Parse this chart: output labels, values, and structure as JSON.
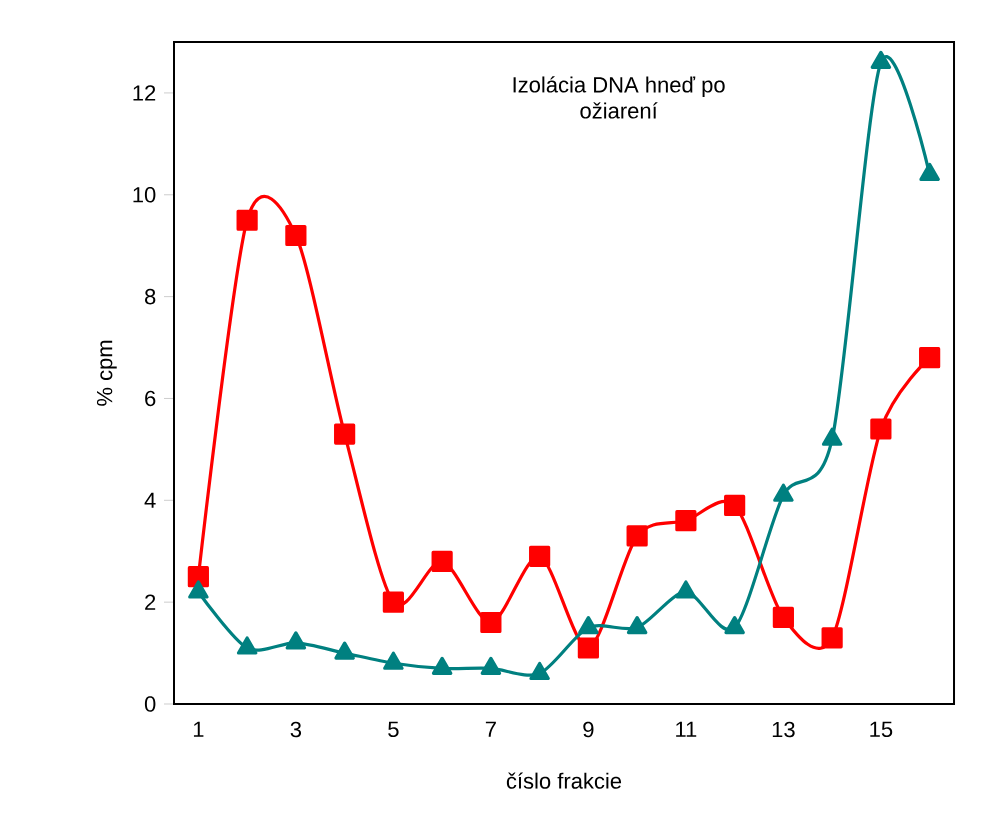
{
  "chart_data": {
    "type": "line",
    "title": "Izolácia DNA hneď po ožiarení",
    "xlabel": "číslo frakcie",
    "ylabel": "% cpm",
    "categories": [
      "1",
      null,
      "3",
      null,
      "5",
      null,
      "7",
      null,
      "9",
      null,
      "11",
      null,
      "13",
      null,
      "15",
      null
    ],
    "series": [
      {
        "color": "#ff0000",
        "marker": "square",
        "values": [
          2.5,
          9.5,
          9.2,
          5.3,
          2.0,
          2.8,
          1.6,
          2.9,
          1.1,
          3.3,
          3.6,
          3.9,
          1.7,
          1.3,
          5.4,
          6.8
        ]
      },
      {
        "color": "#008080",
        "marker": "triangle",
        "values": [
          2.2,
          1.1,
          1.2,
          1.0,
          0.8,
          0.7,
          0.7,
          0.6,
          1.5,
          1.5,
          2.2,
          1.5,
          4.1,
          5.2,
          12.6,
          10.4
        ]
      }
    ],
    "ylim": [
      0,
      13
    ],
    "yticks": [
      0,
      2,
      4,
      6,
      8,
      10,
      12
    ],
    "line_style": "solid"
  }
}
